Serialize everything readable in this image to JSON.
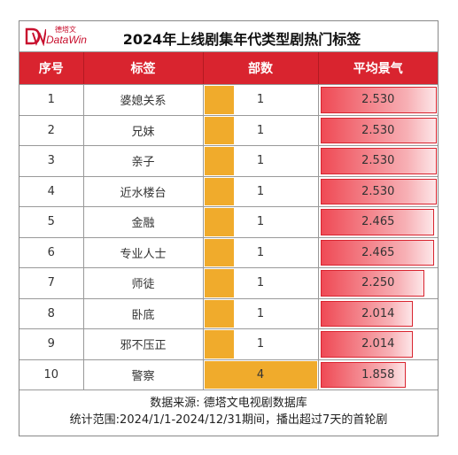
{
  "brand": {
    "small": "德塔文",
    "name": "DataWin"
  },
  "title": "2024年上线剧集年代类型剧热门标签",
  "columns": [
    "序号",
    "标签",
    "部数",
    "平均景气"
  ],
  "rows": [
    {
      "no": "1",
      "tag": "婆媳关系",
      "count": 1,
      "score": "2.530"
    },
    {
      "no": "2",
      "tag": "兄妹",
      "count": 1,
      "score": "2.530"
    },
    {
      "no": "3",
      "tag": "亲子",
      "count": 1,
      "score": "2.530"
    },
    {
      "no": "4",
      "tag": "近水楼台",
      "count": 1,
      "score": "2.530"
    },
    {
      "no": "5",
      "tag": "金融",
      "count": 1,
      "score": "2.465"
    },
    {
      "no": "6",
      "tag": "专业人士",
      "count": 1,
      "score": "2.465"
    },
    {
      "no": "7",
      "tag": "师徒",
      "count": 1,
      "score": "2.250"
    },
    {
      "no": "8",
      "tag": "卧底",
      "count": 1,
      "score": "2.014"
    },
    {
      "no": "9",
      "tag": "邪不压正",
      "count": 1,
      "score": "2.014"
    },
    {
      "no": "10",
      "tag": "警察",
      "count": 4,
      "score": "1.858"
    }
  ],
  "colors": {
    "header": "#d9242f",
    "count_bar": "#f0ab2c",
    "score_bar": "#ef4a55"
  },
  "footer": {
    "source": "数据来源: 德塔文电视剧数据库",
    "range": "统计范围:2024/1/1-2024/12/31期间，播出超过7天的首轮剧"
  }
}
